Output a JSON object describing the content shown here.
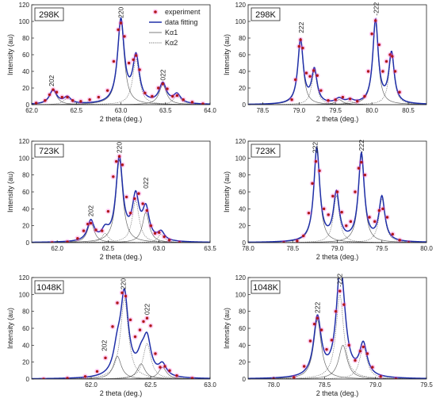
{
  "legend": {
    "experiment": "experiment",
    "fit": "data fitting",
    "ka1": "Kα1",
    "ka2": "Kα2",
    "colors": {
      "experiment_fill": "#b01818",
      "experiment_glow": "#ff4fd8",
      "fit": "#1f2fa8",
      "components": "#444444"
    }
  },
  "chart_data": [
    {
      "type": "line",
      "panel": "a",
      "temperature_label": "298K",
      "xlabel": "2 theta (deg.)",
      "ylabel": "Intensity (au)",
      "xlim": [
        62.0,
        64.0
      ],
      "ylim": [
        0,
        120
      ],
      "xticks": [
        62.0,
        62.5,
        63.0,
        63.5,
        64.0
      ],
      "yticks": [
        0,
        20,
        40,
        60,
        80,
        100,
        120
      ],
      "peak_labels": [
        {
          "text": "202",
          "x": 62.22,
          "y": 20
        },
        {
          "text": "220",
          "x": 63.0,
          "y": 102
        },
        {
          "text": "022",
          "x": 63.47,
          "y": 27
        }
      ],
      "components": [
        {
          "center": 62.24,
          "height": 17,
          "width": 0.05
        },
        {
          "center": 62.4,
          "height": 8,
          "width": 0.05
        },
        {
          "center": 63.0,
          "height": 100,
          "width": 0.045
        },
        {
          "center": 63.17,
          "height": 55,
          "width": 0.045
        },
        {
          "center": 63.47,
          "height": 24,
          "width": 0.05
        },
        {
          "center": 63.63,
          "height": 11,
          "width": 0.05
        }
      ],
      "series": [
        {
          "name": "experiment",
          "x": [
            62.05,
            62.15,
            62.2,
            62.24,
            62.28,
            62.34,
            62.4,
            62.46,
            62.55,
            62.65,
            62.75,
            62.85,
            62.92,
            62.97,
            63.0,
            63.04,
            63.09,
            63.14,
            63.17,
            63.21,
            63.27,
            63.35,
            63.42,
            63.47,
            63.52,
            63.58,
            63.63,
            63.7,
            63.8,
            63.92
          ],
          "y": [
            2,
            5,
            12,
            18,
            15,
            9,
            9,
            5,
            4,
            6,
            9,
            17,
            52,
            90,
            98,
            82,
            50,
            54,
            59,
            42,
            14,
            10,
            20,
            25,
            19,
            10,
            11,
            6,
            3,
            1
          ]
        }
      ]
    },
    {
      "type": "line",
      "panel": "b",
      "temperature_label": "298K",
      "xlabel": "2 theta (deg.)",
      "ylabel": "Intensity (au)",
      "xlim": [
        78.3,
        80.75
      ],
      "ylim": [
        0,
        120
      ],
      "xticks": [
        78.5,
        79.0,
        79.5,
        80.0,
        80.5
      ],
      "yticks": [
        0,
        20,
        40,
        60,
        80,
        100,
        120
      ],
      "peak_labels": [
        {
          "text": "222",
          "x": 79.03,
          "y": 84
        },
        {
          "text": "-222",
          "x": 80.06,
          "y": 105
        }
      ],
      "components": [
        {
          "center": 79.02,
          "height": 77,
          "width": 0.045
        },
        {
          "center": 79.21,
          "height": 40,
          "width": 0.045
        },
        {
          "center": 79.55,
          "height": 6,
          "width": 0.06
        },
        {
          "center": 79.7,
          "height": 4,
          "width": 0.06
        },
        {
          "center": 80.05,
          "height": 100,
          "width": 0.045
        },
        {
          "center": 80.27,
          "height": 60,
          "width": 0.045
        }
      ],
      "series": [
        {
          "name": "experiment",
          "x": [
            78.9,
            78.95,
            79.0,
            79.02,
            79.05,
            79.1,
            79.15,
            79.2,
            79.25,
            79.3,
            79.4,
            79.5,
            79.6,
            79.7,
            79.8,
            79.9,
            79.95,
            80.0,
            80.05,
            80.1,
            80.15,
            80.2,
            80.25,
            80.28,
            80.32,
            80.38
          ],
          "y": [
            6,
            30,
            70,
            78,
            68,
            38,
            34,
            41,
            35,
            17,
            5,
            6,
            9,
            7,
            4,
            10,
            40,
            85,
            101,
            72,
            40,
            52,
            60,
            58,
            40,
            15
          ]
        }
      ]
    },
    {
      "type": "line",
      "panel": "c",
      "temperature_label": "723K",
      "xlabel": "2 theta (deg.)",
      "ylabel": "Intensity (au)",
      "xlim": [
        61.75,
        63.5
      ],
      "ylim": [
        0,
        120
      ],
      "xticks": [
        62.0,
        62.5,
        63.0,
        63.5
      ],
      "yticks": [
        0,
        20,
        40,
        60,
        80,
        100,
        120
      ],
      "peak_labels": [
        {
          "text": "202",
          "x": 62.33,
          "y": 29
        },
        {
          "text": "220",
          "x": 62.61,
          "y": 104
        },
        {
          "text": "022",
          "x": 62.87,
          "y": 62
        }
      ],
      "components": [
        {
          "center": 62.33,
          "height": 24,
          "width": 0.04
        },
        {
          "center": 62.47,
          "height": 11,
          "width": 0.04
        },
        {
          "center": 62.61,
          "height": 98,
          "width": 0.04
        },
        {
          "center": 62.77,
          "height": 50,
          "width": 0.04
        },
        {
          "center": 62.87,
          "height": 36,
          "width": 0.04
        },
        {
          "center": 63.02,
          "height": 10,
          "width": 0.04
        }
      ],
      "series": [
        {
          "name": "experiment",
          "x": [
            61.95,
            62.1,
            62.2,
            62.26,
            62.3,
            62.33,
            62.38,
            62.44,
            62.5,
            62.55,
            62.58,
            62.61,
            62.64,
            62.68,
            62.72,
            62.76,
            62.8,
            62.84,
            62.88,
            62.92,
            62.96,
            63.0,
            63.05,
            63.1,
            63.2
          ],
          "y": [
            0,
            1,
            5,
            14,
            22,
            23,
            15,
            14,
            37,
            78,
            96,
            102,
            92,
            54,
            35,
            52,
            58,
            46,
            38,
            20,
            11,
            12,
            7,
            3,
            0
          ]
        }
      ]
    },
    {
      "type": "line",
      "panel": "d",
      "temperature_label": "723K",
      "xlabel": "2 theta (deg.)",
      "ylabel": "Intensity (au)",
      "xlim": [
        78.0,
        80.0
      ],
      "ylim": [
        0,
        120
      ],
      "xticks": [
        78.0,
        78.5,
        79.0,
        79.5,
        80.0
      ],
      "yticks": [
        0,
        20,
        40,
        60,
        80,
        100,
        120
      ],
      "peak_labels": [
        {
          "text": "222",
          "x": 78.75,
          "y": 104
        },
        {
          "text": "-222",
          "x": 79.27,
          "y": 104
        }
      ],
      "components": [
        {
          "center": 78.77,
          "height": 110,
          "width": 0.04
        },
        {
          "center": 78.99,
          "height": 56,
          "width": 0.04
        },
        {
          "center": 79.27,
          "height": 103,
          "width": 0.04
        },
        {
          "center": 79.5,
          "height": 52,
          "width": 0.04
        }
      ],
      "series": [
        {
          "name": "experiment",
          "x": [
            78.4,
            78.55,
            78.62,
            78.68,
            78.72,
            78.76,
            78.8,
            78.85,
            78.9,
            78.95,
            79.0,
            79.05,
            79.1,
            79.15,
            79.2,
            79.24,
            79.27,
            79.31,
            79.36,
            79.42,
            79.47,
            79.51,
            79.56,
            79.62,
            79.7,
            79.8
          ],
          "y": [
            0,
            2,
            8,
            35,
            70,
            96,
            85,
            40,
            33,
            55,
            60,
            36,
            20,
            25,
            60,
            88,
            95,
            80,
            30,
            25,
            38,
            40,
            30,
            10,
            3,
            0
          ]
        }
      ]
    },
    {
      "type": "line",
      "panel": "e",
      "temperature_label": "1048K",
      "xlabel": "2 theta (deg.)",
      "ylabel": "Intensity (au)",
      "xlim": [
        61.5,
        63.0
      ],
      "ylim": [
        0,
        120
      ],
      "xticks": [
        62.0,
        62.5,
        63.0
      ],
      "yticks": [
        0,
        20,
        40,
        60,
        80,
        100,
        120
      ],
      "peak_labels": [
        {
          "text": "202",
          "x": 62.11,
          "y": 31
        },
        {
          "text": "220",
          "x": 62.27,
          "y": 104
        },
        {
          "text": "022",
          "x": 62.47,
          "y": 74
        }
      ],
      "components": [
        {
          "center": 62.22,
          "height": 27,
          "width": 0.04
        },
        {
          "center": 62.28,
          "height": 95,
          "width": 0.04
        },
        {
          "center": 62.42,
          "height": 18,
          "width": 0.04
        },
        {
          "center": 62.47,
          "height": 42,
          "width": 0.04
        },
        {
          "center": 62.6,
          "height": 14,
          "width": 0.04
        }
      ],
      "series": [
        {
          "name": "experiment",
          "x": [
            61.6,
            61.8,
            61.95,
            62.05,
            62.12,
            62.18,
            62.22,
            62.26,
            62.29,
            62.33,
            62.37,
            62.41,
            62.44,
            62.47,
            62.5,
            62.54,
            62.58,
            62.62,
            62.66,
            62.72,
            62.85
          ],
          "y": [
            0,
            1,
            3,
            9,
            25,
            62,
            90,
            102,
            98,
            70,
            50,
            58,
            68,
            72,
            63,
            30,
            14,
            15,
            10,
            4,
            1
          ]
        }
      ]
    },
    {
      "type": "line",
      "panel": "f",
      "temperature_label": "1048K",
      "xlabel": "2 theta (deg.)",
      "ylabel": "Intensity (au)",
      "xlim": [
        77.75,
        79.5
      ],
      "ylim": [
        0,
        120
      ],
      "xticks": [
        78.0,
        78.5,
        79.0,
        79.5
      ],
      "yticks": [
        0,
        20,
        40,
        60,
        80,
        100,
        120
      ],
      "peak_labels": [
        {
          "text": "222",
          "x": 78.43,
          "y": 76
        },
        {
          "text": "-222",
          "x": 78.65,
          "y": 107
        }
      ],
      "components": [
        {
          "center": 78.43,
          "height": 70,
          "width": 0.045
        },
        {
          "center": 78.65,
          "height": 100,
          "width": 0.045
        },
        {
          "center": 78.68,
          "height": 40,
          "width": 0.05
        },
        {
          "center": 78.88,
          "height": 38,
          "width": 0.045
        }
      ],
      "series": [
        {
          "name": "experiment",
          "x": [
            78.0,
            78.2,
            78.3,
            78.36,
            78.4,
            78.43,
            78.47,
            78.52,
            78.57,
            78.61,
            78.65,
            78.69,
            78.74,
            78.8,
            78.85,
            78.88,
            78.92,
            78.97,
            79.05,
            79.2
          ],
          "y": [
            0,
            2,
            15,
            45,
            65,
            72,
            58,
            35,
            46,
            80,
            104,
            88,
            40,
            22,
            33,
            38,
            30,
            14,
            3,
            0
          ]
        }
      ]
    }
  ]
}
